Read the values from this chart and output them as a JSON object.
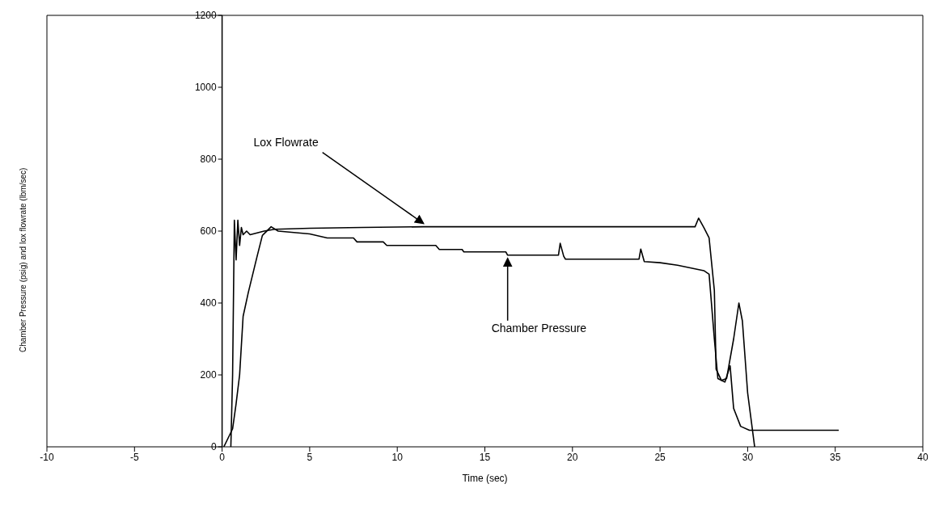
{
  "chart_data": {
    "type": "line",
    "xlabel": "Time (sec)",
    "ylabel": "Chamber Pressure (psig) and lox flowrate (lbm/sec)",
    "xlim": [
      -10,
      40
    ],
    "xticks": [
      -10,
      -5,
      0,
      5,
      10,
      15,
      20,
      25,
      30,
      35,
      40
    ],
    "ylim": [
      0,
      1200
    ],
    "yticks": [
      0,
      200,
      400,
      600,
      800,
      1000,
      1200
    ],
    "marker": "none",
    "line_style": "solid",
    "series": [
      {
        "color": "#000000",
        "x": [
          0.5,
          0.6,
          0.7,
          0.8,
          0.9,
          1.0,
          1.1,
          1.2,
          1.4,
          1.6,
          2.0,
          2.4,
          3.0,
          5,
          8,
          11.5,
          15,
          20,
          25,
          27.0,
          27.2,
          27.5,
          27.8,
          28.1,
          28.2,
          28.5,
          28.8,
          29.2,
          29.5,
          29.7,
          30.0,
          30.4
        ],
        "values": [
          0,
          200,
          630,
          520,
          630,
          560,
          610,
          590,
          600,
          590,
          595,
          600,
          605,
          608,
          610,
          612,
          612,
          612,
          612,
          612,
          636,
          610,
          581,
          435,
          216,
          185,
          190,
          300,
          400,
          350,
          150,
          0
        ]
      },
      {
        "color": "#000000",
        "x": [
          0.1,
          0.6,
          0.8,
          1.0,
          1.2,
          1.5,
          2.0,
          2.3,
          2.8,
          3.2,
          5,
          6.0,
          7.5,
          7.7,
          9.2,
          9.4,
          12.2,
          12.4,
          13.7,
          13.8,
          16.2,
          16.3,
          18.9,
          19.2,
          19.3,
          19.5,
          19.6,
          23.3,
          23.8,
          23.9,
          24.1,
          25,
          26,
          27.0,
          27.5,
          27.8,
          28.1,
          28.3,
          28.7,
          29.0,
          29.2,
          29.6,
          30.1,
          35.2
        ],
        "values": [
          0,
          50,
          120,
          200,
          363,
          430,
          530,
          588,
          612,
          600,
          592,
          581,
          581,
          570,
          570,
          560,
          560,
          549,
          549,
          542,
          542,
          533,
          533,
          533,
          566,
          530,
          522,
          522,
          522,
          550,
          515,
          512,
          505,
          495,
          490,
          480,
          300,
          190,
          180,
          225,
          107,
          57,
          46,
          46
        ]
      }
    ],
    "annotations": [
      {
        "text": "Lox Flowrate",
        "x": 11.5,
        "y": 612
      },
      {
        "text": "Chamber Pressure",
        "x": 16.3,
        "y": 533
      }
    ]
  }
}
